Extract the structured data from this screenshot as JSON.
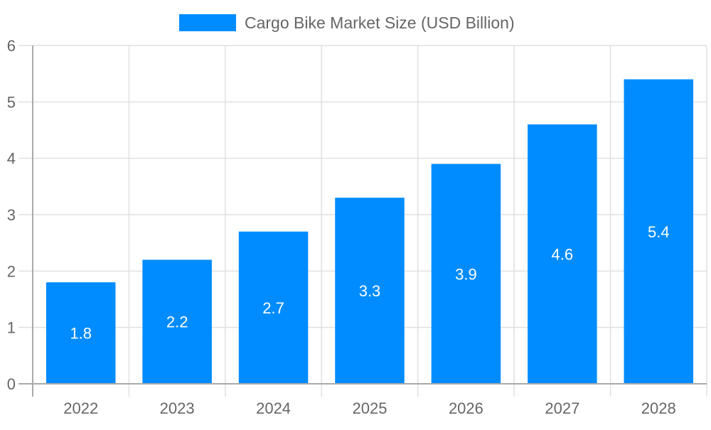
{
  "chart_data": {
    "type": "bar",
    "title": "",
    "xlabel": "",
    "ylabel": "",
    "categories": [
      "2022",
      "2023",
      "2024",
      "2025",
      "2026",
      "2027",
      "2028"
    ],
    "series": [
      {
        "name": "Cargo Bike Market Size (USD Billion)",
        "values": [
          1.8,
          2.2,
          2.7,
          3.3,
          3.9,
          4.6,
          5.4
        ],
        "color": "#008cff"
      }
    ],
    "ylim": [
      0,
      6
    ],
    "yticks": [
      "0",
      "1",
      "2",
      "3",
      "4",
      "5",
      "6"
    ],
    "data_labels": [
      "1.8",
      "2.2",
      "2.7",
      "3.3",
      "3.9",
      "4.6",
      "5.4"
    ],
    "grid": true,
    "legend_position": "top"
  }
}
